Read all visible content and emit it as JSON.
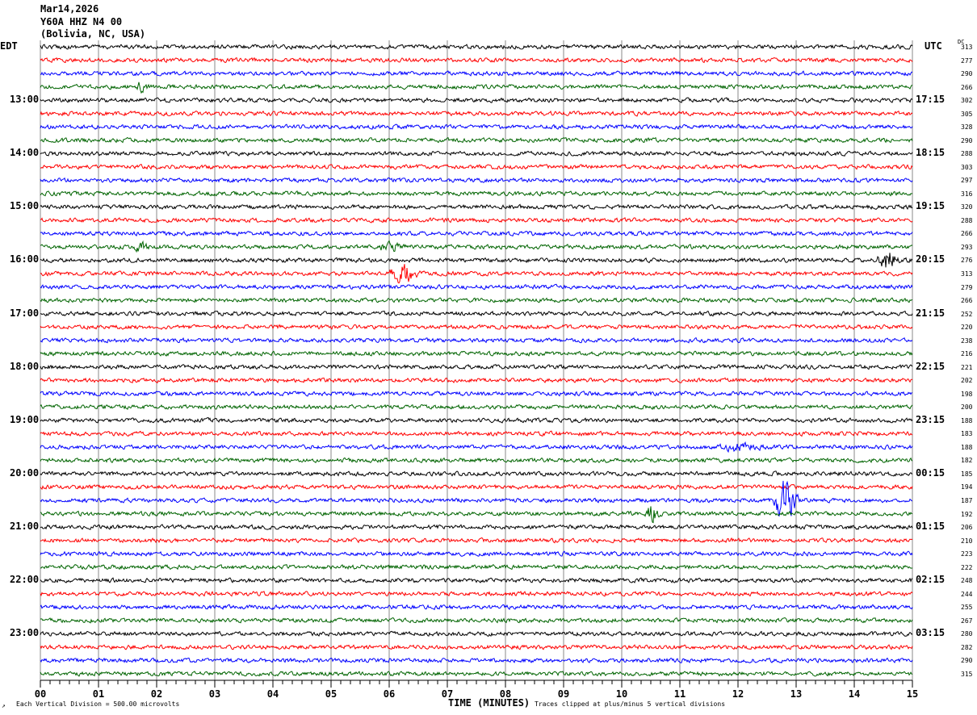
{
  "header": {
    "date": "Mar14,2026",
    "station": "Y60A HHZ N4 00",
    "location": "(Bolivia, NC, USA)"
  },
  "left_tz": "EDT",
  "right_tz": "UTC",
  "dc_label": "DC",
  "chart_data": {
    "type": "line",
    "title": "Y60A HHZ N4 00 helicorder",
    "xlabel": "TIME (MINUTES)",
    "xlim": [
      0,
      15
    ],
    "x_ticks": [
      "00",
      "01",
      "02",
      "03",
      "04",
      "05",
      "06",
      "07",
      "08",
      "09",
      "10",
      "11",
      "12",
      "13",
      "14",
      "15"
    ],
    "trace_colors": [
      "#000000",
      "#ff0000",
      "#0000ff",
      "#006400"
    ],
    "left_labels": [
      "13:00",
      "14:00",
      "15:00",
      "16:00",
      "17:00",
      "18:00",
      "19:00",
      "20:00",
      "21:00",
      "22:00",
      "23:00"
    ],
    "right_labels": [
      "17:15",
      "18:15",
      "19:15",
      "20:15",
      "21:15",
      "22:15",
      "23:15",
      "00:15",
      "01:15",
      "02:15",
      "03:15"
    ],
    "dc_values": [
      "313",
      "277",
      "290",
      "266",
      "302",
      "305",
      "328",
      "290",
      "288",
      "303",
      "297",
      "316",
      "320",
      "288",
      "266",
      "293",
      "276",
      "313",
      "279",
      "266",
      "252",
      "220",
      "238",
      "216",
      "221",
      "202",
      "198",
      "200",
      "188",
      "183",
      "188",
      "182",
      "185",
      "194",
      "187",
      "192",
      "206",
      "210",
      "223",
      "222",
      "248",
      "244",
      "255",
      "267",
      "280",
      "282",
      "290",
      "315"
    ],
    "events": [
      {
        "row": 16,
        "start_min": 14.4,
        "end_min": 15.0,
        "amplitude": 1.6
      },
      {
        "row": 17,
        "start_min": 6.0,
        "end_min": 6.8,
        "amplitude": 1.5
      },
      {
        "row": 30,
        "start_min": 11.6,
        "end_min": 12.9,
        "amplitude": 0.5
      },
      {
        "row": 34,
        "start_min": 12.6,
        "end_min": 13.3,
        "amplitude": 3.5
      },
      {
        "row": 35,
        "start_min": 10.4,
        "end_min": 10.8,
        "amplitude": 1.3
      },
      {
        "row": 3,
        "start_min": 1.6,
        "end_min": 2.0,
        "amplitude": 0.6
      },
      {
        "row": 15,
        "start_min": 1.6,
        "end_min": 2.0,
        "amplitude": 0.6
      },
      {
        "row": 15,
        "start_min": 5.8,
        "end_min": 6.5,
        "amplitude": 0.6
      }
    ]
  },
  "footer": {
    "scale": "Each Vertical Division =  500.00 microvolts",
    "xlabel": "TIME (MINUTES)",
    "clip_note": "Traces clipped at plus/minus 5 vertical divisions"
  }
}
